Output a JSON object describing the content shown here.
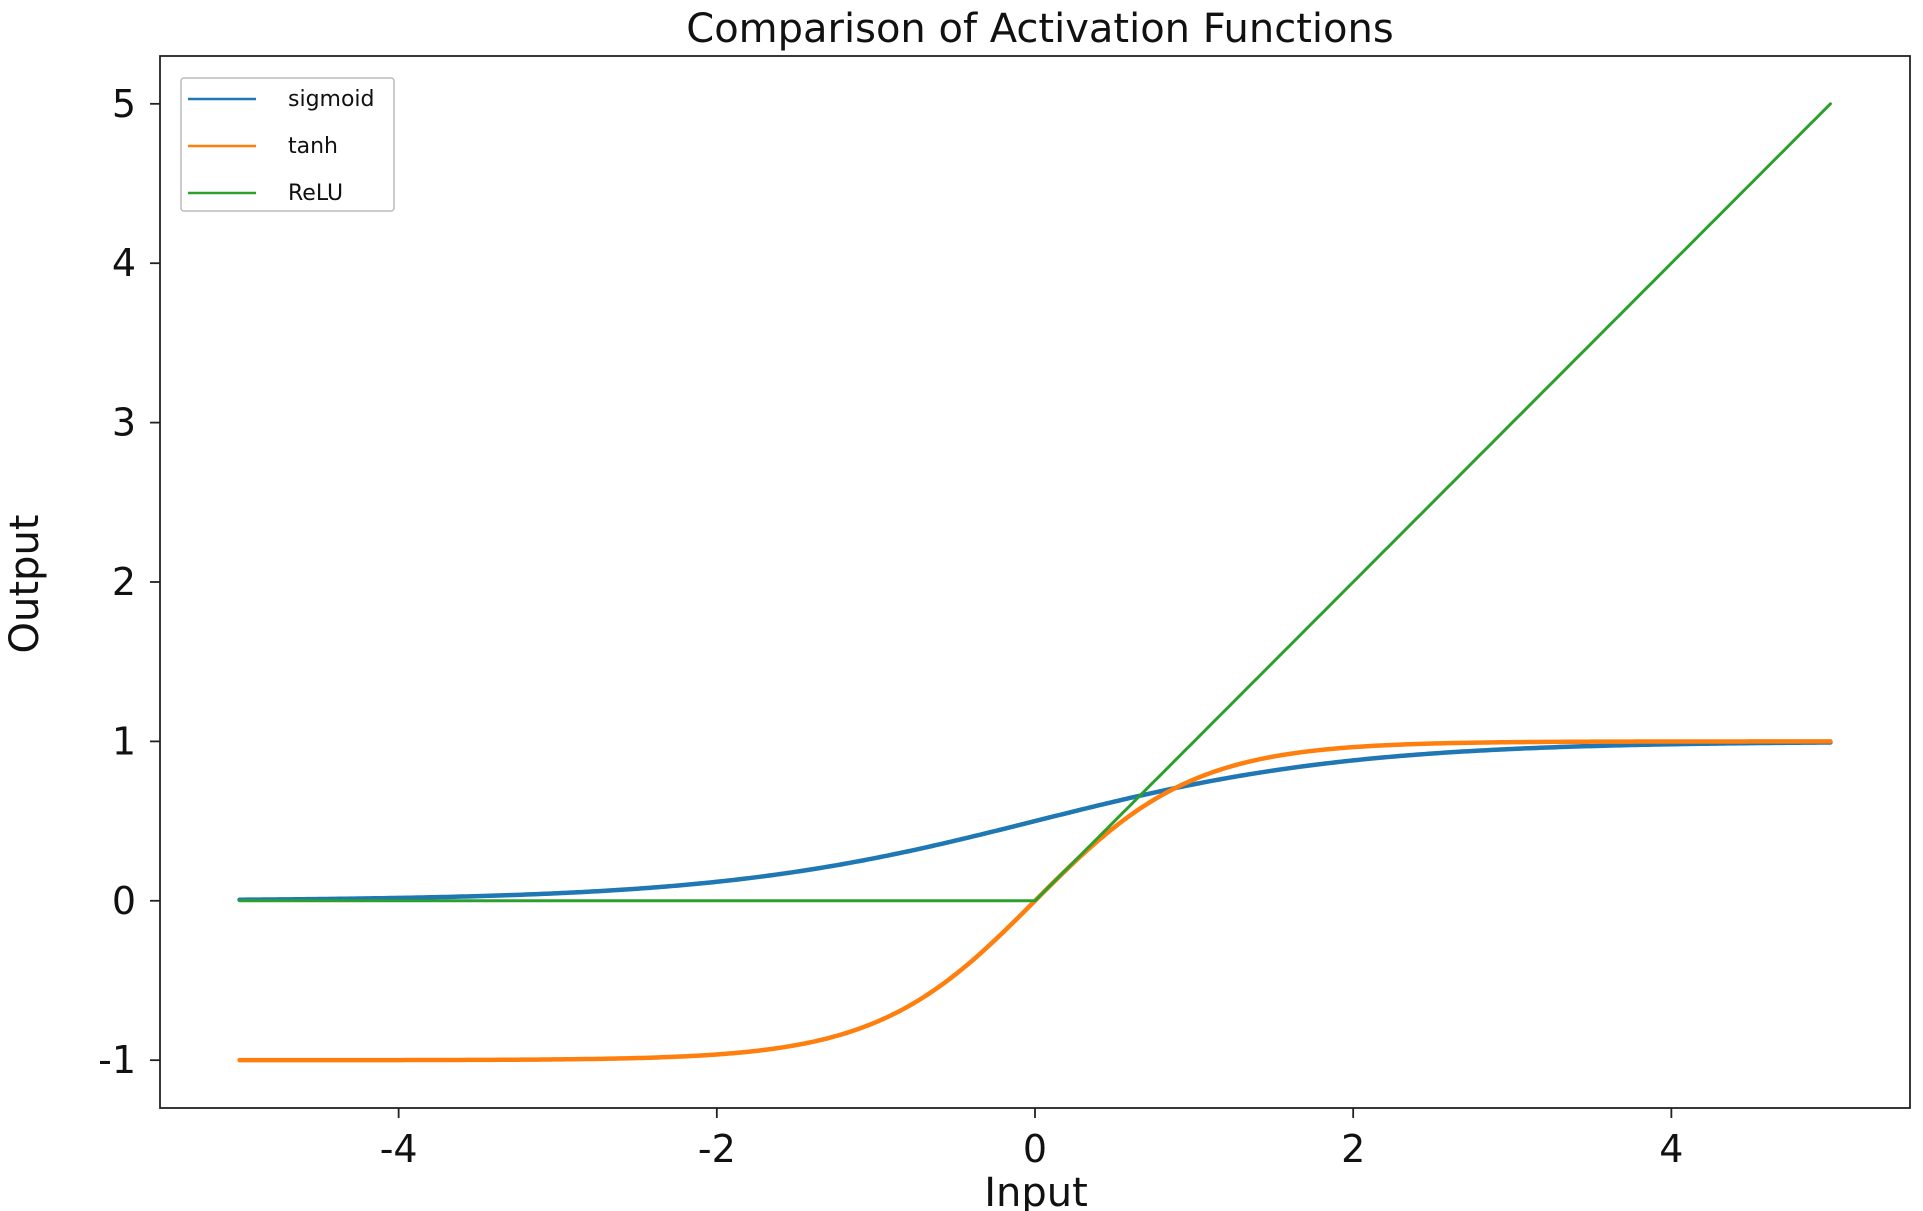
{
  "chart_data": {
    "type": "line",
    "title": "Comparison of Activation Functions",
    "xlabel": "Input",
    "ylabel": "Output",
    "xlim": [
      -5.5,
      5.5
    ],
    "ylim": [
      -1.3,
      5.3
    ],
    "xticks": [
      -4,
      -2,
      0,
      2,
      4
    ],
    "yticks": [
      -1,
      0,
      1,
      2,
      3,
      4,
      5
    ],
    "xtick_labels": [
      "-4",
      "-2",
      "0",
      "2",
      "4"
    ],
    "ytick_labels": [
      "-1",
      "0",
      "1",
      "2",
      "3",
      "4",
      "5"
    ],
    "x_range": [
      -5,
      5
    ],
    "grid": false,
    "legend_position": "top-left",
    "series": [
      {
        "name": "sigmoid",
        "function": "sigmoid",
        "color": "#1f77b4"
      },
      {
        "name": "tanh",
        "function": "tanh",
        "color": "#ff7f0e"
      },
      {
        "name": "ReLU",
        "function": "relu",
        "color": "#2ca02c"
      }
    ]
  }
}
